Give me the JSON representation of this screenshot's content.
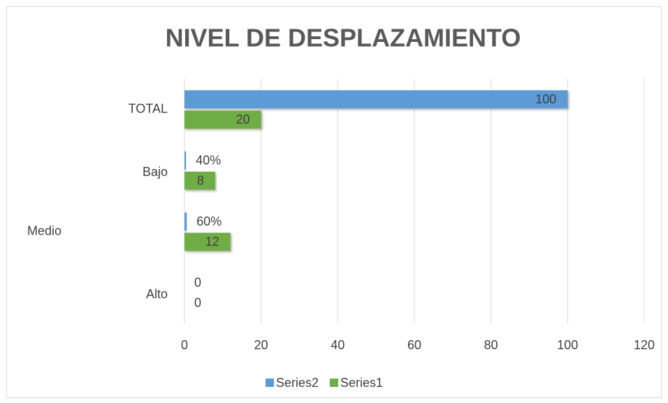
{
  "chart_data": {
    "type": "bar",
    "orientation": "horizontal",
    "title": "NIVEL DE DESPLAZAMIENTO",
    "categories": [
      "TOTAL",
      "Bajo",
      "Medio",
      "Alto"
    ],
    "series": [
      {
        "name": "Series2",
        "color": "#5b9bd5",
        "values": [
          100,
          0.4,
          0.6,
          0
        ],
        "value_labels": [
          "100",
          "40%",
          "60%",
          "0"
        ]
      },
      {
        "name": "Series1",
        "color": "#70ad47",
        "values": [
          20,
          8,
          12,
          0
        ]
      }
    ],
    "xlim": [
      0,
      120
    ],
    "xticks": [
      0,
      20,
      40,
      60,
      80,
      100,
      120
    ],
    "grid": true,
    "legend": "bottom"
  }
}
